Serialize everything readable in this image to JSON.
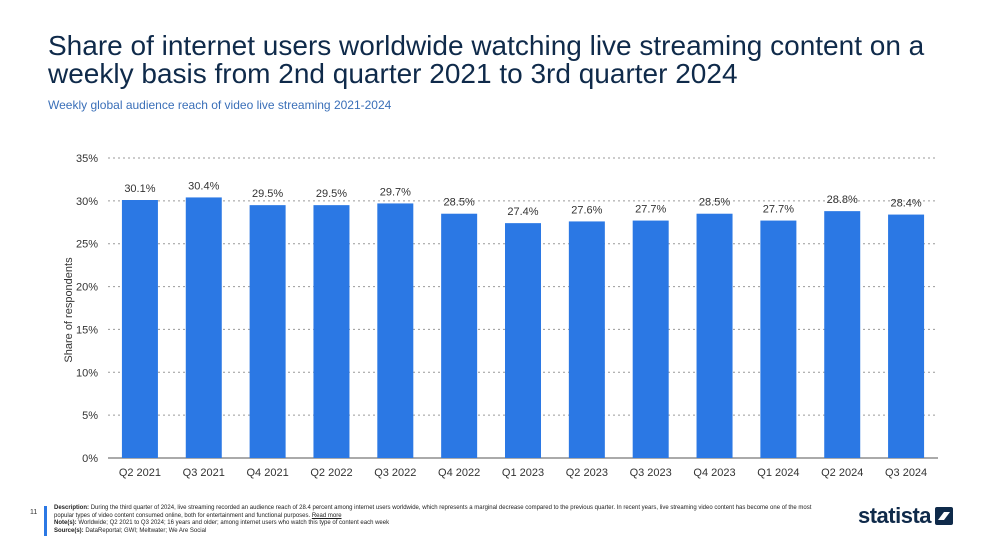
{
  "header": {
    "title": "Share of internet users worldwide watching live streaming content on a weekly basis from 2nd quarter 2021 to 3rd quarter 2024",
    "subtitle": "Weekly global audience reach of video live streaming 2021-2024"
  },
  "chart_data": {
    "type": "bar",
    "categories": [
      "Q2 2021",
      "Q3 2021",
      "Q4 2021",
      "Q2 2022",
      "Q3 2022",
      "Q4 2022",
      "Q1 2023",
      "Q2 2023",
      "Q3 2023",
      "Q4 2023",
      "Q1 2024",
      "Q2 2024",
      "Q3 2024"
    ],
    "values": [
      30.1,
      30.4,
      29.5,
      29.5,
      29.7,
      28.5,
      27.4,
      27.6,
      27.7,
      28.5,
      27.7,
      28.8,
      28.4
    ],
    "value_labels": [
      "30.1%",
      "30.4%",
      "29.5%",
      "29.5%",
      "29.7%",
      "28.5%",
      "27.4%",
      "27.6%",
      "27.7%",
      "28.5%",
      "27.7%",
      "28.8%",
      "28.4%"
    ],
    "ylabel": "Share of respondents",
    "xlabel": "",
    "ylim": [
      0,
      35
    ],
    "yticks": [
      "0%",
      "5%",
      "10%",
      "15%",
      "20%",
      "25%",
      "30%",
      "35%"
    ],
    "grid": true,
    "bar_color": "#2b78e4"
  },
  "footer": {
    "page_number": "11",
    "description_label": "Description:",
    "description": "During the third quarter of 2024, live streaming recorded an audience reach of 28.4 percent among internet users worldwide, which represents a marginal decrease compared to the previous quarter. In recent years, live streaming video content has become one of the most popular types of video content consumed online, both for entertainment and functional purposes.",
    "read_more": "Read more",
    "notes_label": "Note(s):",
    "notes": "Worldwide; Q2 2021 to Q3 2024; 16 years and older; among internet users who watch this type of content each week",
    "sources_label": "Source(s):",
    "sources": "DataReportal; GWI; Meltwater; We Are Social",
    "logo": "statista",
    "logo_icon": "statista-logo-icon"
  }
}
